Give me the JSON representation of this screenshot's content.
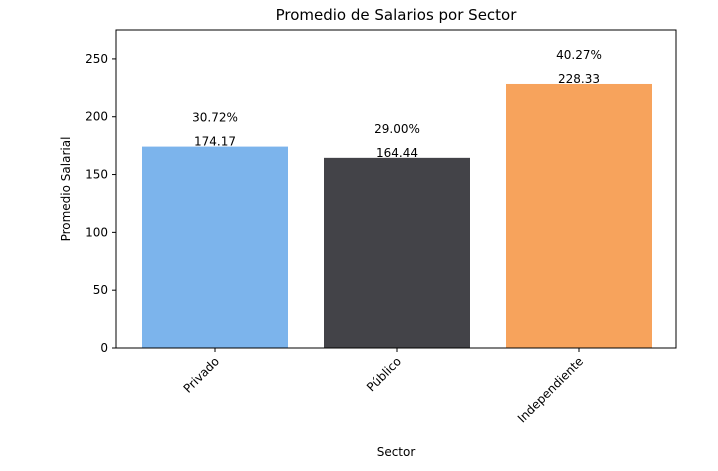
{
  "chart_data": {
    "type": "bar",
    "title": "Promedio de Salarios por Sector",
    "xlabel": "Sector",
    "ylabel": "Promedio Salarial",
    "categories": [
      "Privado",
      "Público",
      "Independiente"
    ],
    "values": [
      174.17,
      164.44,
      228.33
    ],
    "value_labels": [
      "174.17",
      "164.44",
      "228.33"
    ],
    "percent_labels": [
      "30.72%",
      "29.00%",
      "40.27%"
    ],
    "colors": [
      "#7cb4ec",
      "#434348",
      "#f7a35c"
    ],
    "ylim": [
      0,
      275
    ],
    "yticks": [
      0,
      50,
      100,
      150,
      200,
      250
    ],
    "xtick_rotation_deg": 45,
    "grid": false,
    "legend": "none"
  }
}
